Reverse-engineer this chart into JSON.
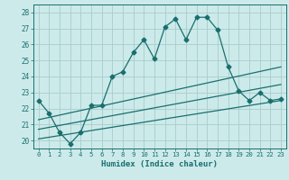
{
  "xlabel": "Humidex (Indice chaleur)",
  "bg_color": "#cceaea",
  "grid_color": "#aacccc",
  "line_color": "#1a6e6e",
  "xlim": [
    -0.5,
    23.5
  ],
  "ylim": [
    19.5,
    28.5
  ],
  "xticks": [
    0,
    1,
    2,
    3,
    4,
    5,
    6,
    7,
    8,
    9,
    10,
    11,
    12,
    13,
    14,
    15,
    16,
    17,
    18,
    19,
    20,
    21,
    22,
    23
  ],
  "yticks": [
    20,
    21,
    22,
    23,
    24,
    25,
    26,
    27,
    28
  ],
  "line1_x": [
    0,
    1,
    2,
    3,
    4,
    5,
    6,
    7,
    8,
    9,
    10,
    11,
    12,
    13,
    14,
    15,
    16,
    17,
    18,
    19,
    20,
    21,
    22,
    23
  ],
  "line1_y": [
    22.5,
    21.7,
    20.5,
    19.8,
    20.5,
    22.2,
    22.2,
    24.0,
    24.3,
    25.5,
    26.3,
    25.1,
    27.1,
    27.6,
    26.3,
    27.7,
    27.7,
    26.9,
    24.6,
    23.1,
    22.5,
    23.0,
    22.5,
    22.6
  ],
  "line2_x": [
    0,
    23
  ],
  "line2_y": [
    21.3,
    24.6
  ],
  "line3_x": [
    0,
    23
  ],
  "line3_y": [
    20.7,
    23.5
  ],
  "line4_x": [
    0,
    23
  ],
  "line4_y": [
    20.1,
    22.5
  ],
  "markersize": 2.5,
  "linewidth": 0.9
}
